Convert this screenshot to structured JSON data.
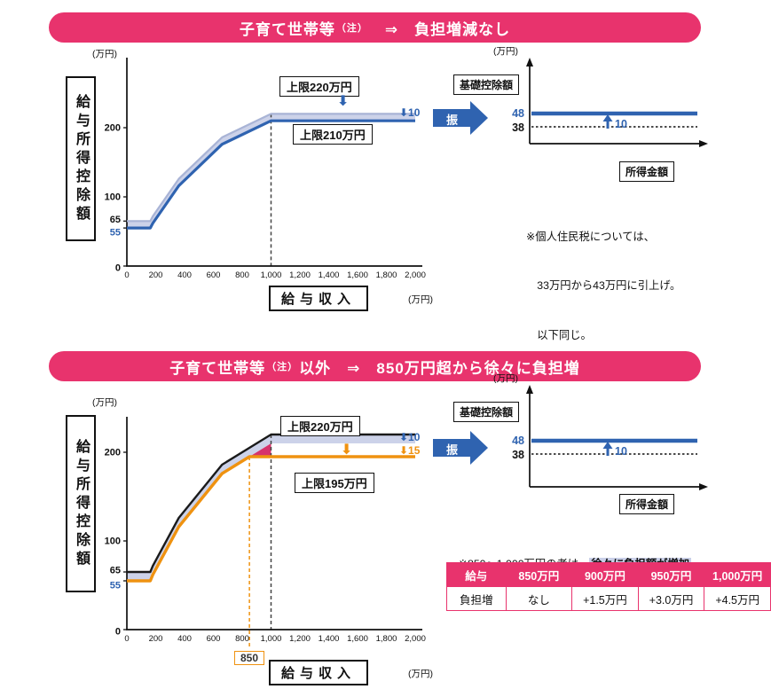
{
  "banners": {
    "top": {
      "head": "子育て世帯等",
      "note": "（注）",
      "tail": "　⇒　負担増減なし"
    },
    "bottom": {
      "head": "子育て世帯等",
      "note": "（注）",
      "tail": "以外　⇒　850万円超から徐々に負担増"
    }
  },
  "icons": {
    "down_arrow": "⬇"
  },
  "transfer": {
    "label": "振　替"
  },
  "colors": {
    "pink": "#e8336d",
    "blue": "#2f63b0",
    "orange": "#ef9210",
    "lavender": "#c9cfe8",
    "band_fill": "#ccd2e9",
    "band_top": "#a9b4d6",
    "magenta": "#d6336c",
    "black": "#1a1a1a"
  },
  "notes": {
    "top_lines": [
      "※個人住民税については、",
      "　33万円から43万円に引上げ。",
      "　以下同じ。"
    ],
    "bottom_prefix": "※850〜1,000万円の者は、",
    "bottom_highlight": "徐々に負担額が増加"
  },
  "table": {
    "headers": [
      "給与",
      "850万円",
      "900万円",
      "950万円",
      "1,000万円"
    ],
    "rows": [
      [
        "負担増",
        "なし",
        "+1.5万円",
        "+3.0万円",
        "+4.5万円"
      ]
    ]
  },
  "chart_data": [
    {
      "id": "salary-income-deduction-child-rearing",
      "type": "line",
      "title": "子育て世帯等（注） 給与所得控除",
      "ylabel": "給与所得控除額",
      "xlabel": "給与収入",
      "axis_unit": "(万円)",
      "xlim": [
        0,
        2000
      ],
      "ylim": [
        0,
        260
      ],
      "x_ticks": [
        "0",
        "200",
        "400",
        "600",
        "800",
        "1,000",
        "1,200",
        "1,400",
        "1,600",
        "1,800",
        "2,000"
      ],
      "y_ticks": [
        {
          "v": 200,
          "label": "200"
        },
        {
          "v": 100,
          "label": "100"
        },
        {
          "v": 65,
          "label": "65",
          "dy": -2
        },
        {
          "v": 55,
          "label": "55",
          "color": "#2f63b0",
          "dy": 5
        },
        {
          "v": 0,
          "label": "0",
          "dy": 2
        }
      ],
      "series": [
        {
          "name": "改正前（上限220万円）",
          "color": "#a9b4d6",
          "width": 2.2,
          "points": [
            [
              0,
              65
            ],
            [
              162.5,
              65
            ],
            [
              180,
              72
            ],
            [
              360,
              126
            ],
            [
              660,
              186
            ],
            [
              1000,
              220
            ],
            [
              2000,
              220
            ]
          ]
        },
        {
          "name": "改正後（上限210万円）",
          "color": "#2f63b0",
          "width": 3.2,
          "points": [
            [
              0,
              55
            ],
            [
              162.5,
              55
            ],
            [
              180,
              62
            ],
            [
              360,
              116
            ],
            [
              660,
              176
            ],
            [
              1000,
              210
            ],
            [
              2000,
              210
            ]
          ]
        }
      ],
      "band_fill": "#ccd2e9",
      "dashed": [
        {
          "x": 1000,
          "y_from": 220,
          "color": "#444"
        }
      ],
      "cap_label_old": "上限220万円",
      "cap_label_new": "上限210万円",
      "delta_full": "⬇10"
    },
    {
      "id": "basic-deduction-child-rearing",
      "type": "line",
      "title": "基礎控除額",
      "xlabel": "所得金額",
      "axis_unit": "(万円)",
      "values": {
        "new": 48,
        "old": 38,
        "delta": 10
      }
    },
    {
      "id": "salary-income-deduction-other",
      "type": "line",
      "title": "子育て世帯等（注）以外 給与所得控除",
      "ylabel": "給与所得控除額",
      "xlabel": "給与収入",
      "axis_unit": "(万円)",
      "xlim": [
        0,
        2000
      ],
      "ylim": [
        0,
        260
      ],
      "x_ticks": [
        "0",
        "200",
        "400",
        "600",
        "800",
        "1,000",
        "1,200",
        "1,400",
        "1,600",
        "1,800",
        "2,000"
      ],
      "y_ticks": [
        {
          "v": 200,
          "label": "200"
        },
        {
          "v": 100,
          "label": "100"
        },
        {
          "v": 65,
          "label": "65",
          "dy": -2
        },
        {
          "v": 55,
          "label": "55",
          "color": "#2f63b0",
          "dy": 5
        },
        {
          "v": 0,
          "label": "0",
          "dy": 2
        }
      ],
      "series": [
        {
          "name": "改正前（上限220万円）",
          "color": "#1a1a1a",
          "width": 2.4,
          "points": [
            [
              0,
              65
            ],
            [
              162.5,
              65
            ],
            [
              180,
              72
            ],
            [
              360,
              126
            ],
            [
              660,
              186
            ],
            [
              850,
              205
            ],
            [
              1000,
              220
            ],
            [
              2000,
              220
            ]
          ]
        },
        {
          "name": "改正後（上限195万円）",
          "color": "#ef9210",
          "width": 3.4,
          "points": [
            [
              0,
              55
            ],
            [
              162.5,
              55
            ],
            [
              180,
              62
            ],
            [
              360,
              116
            ],
            [
              660,
              176
            ],
            [
              850,
              195
            ],
            [
              2000,
              195
            ]
          ]
        }
      ],
      "band_lower": [
        [
          0,
          55
        ],
        [
          162.5,
          55
        ],
        [
          180,
          62
        ],
        [
          360,
          116
        ],
        [
          660,
          176
        ],
        [
          850,
          195
        ],
        [
          1000,
          210
        ],
        [
          2000,
          210
        ]
      ],
      "band_fill": "#ccd2e9",
      "highlight_polygon": [
        [
          850,
          195
        ],
        [
          1000,
          210
        ],
        [
          1000,
          195
        ]
      ],
      "highlight_fill": "#d6336c",
      "dashed": [
        {
          "x": 1000,
          "y_from": 220,
          "color": "#444"
        },
        {
          "x": 850,
          "y_from": 195,
          "color": "#ef9210",
          "overshoot": 22
        }
      ],
      "cap_label_old": "上限220万円",
      "cap_label_new": "上限195万円",
      "x_marker": "850",
      "delta_blue_full": "⬇10",
      "delta_orange_full": "⬇15"
    },
    {
      "id": "basic-deduction-other",
      "type": "line",
      "title": "基礎控除額",
      "xlabel": "所得金額",
      "axis_unit": "(万円)",
      "values": {
        "new": 48,
        "old": 38,
        "delta": 10
      }
    }
  ]
}
